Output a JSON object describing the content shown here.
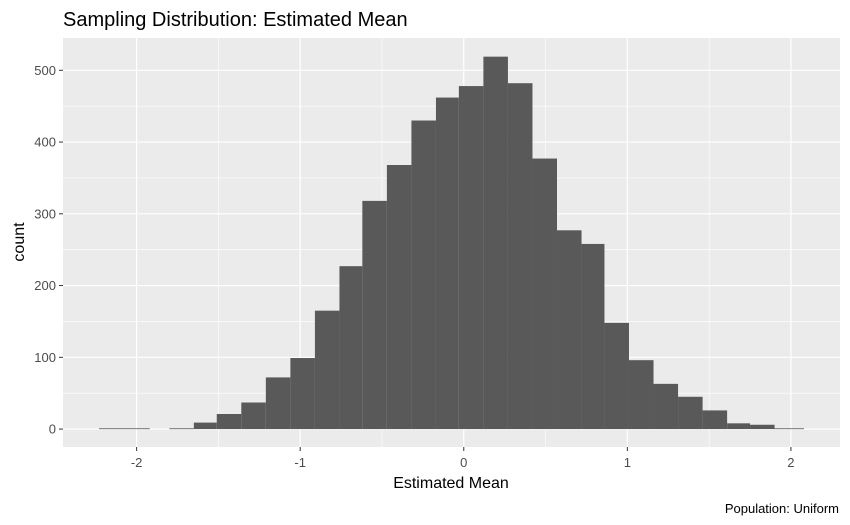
{
  "chart_data": {
    "type": "bar",
    "title": "Sampling Distribution: Estimated Mean",
    "xlabel": "Estimated Mean",
    "ylabel": "count",
    "caption": "Population: Uniform",
    "xlim": [
      -2.45,
      2.3
    ],
    "ylim": [
      -25,
      545
    ],
    "x_ticks": [
      "-2",
      "-1",
      "0",
      "1",
      "2"
    ],
    "y_ticks": [
      "0",
      "100",
      "200",
      "300",
      "400",
      "500"
    ],
    "grid": true,
    "bar_color": "#595959",
    "panel_color": "#ebebeb",
    "bins": [
      {
        "x0": -2.23,
        "x1": -1.92,
        "count": 1
      },
      {
        "x0": -1.8,
        "x1": -1.65,
        "count": 1
      },
      {
        "x0": -1.65,
        "x1": -1.51,
        "count": 9
      },
      {
        "x0": -1.51,
        "x1": -1.36,
        "count": 21
      },
      {
        "x0": -1.36,
        "x1": -1.21,
        "count": 37
      },
      {
        "x0": -1.21,
        "x1": -1.06,
        "count": 72
      },
      {
        "x0": -1.06,
        "x1": -0.91,
        "count": 99
      },
      {
        "x0": -0.91,
        "x1": -0.76,
        "count": 165
      },
      {
        "x0": -0.76,
        "x1": -0.62,
        "count": 227
      },
      {
        "x0": -0.62,
        "x1": -0.47,
        "count": 318
      },
      {
        "x0": -0.47,
        "x1": -0.32,
        "count": 368
      },
      {
        "x0": -0.32,
        "x1": -0.17,
        "count": 430
      },
      {
        "x0": -0.17,
        "x1": -0.03,
        "count": 462
      },
      {
        "x0": -0.03,
        "x1": 0.12,
        "count": 478
      },
      {
        "x0": 0.12,
        "x1": 0.27,
        "count": 519
      },
      {
        "x0": 0.27,
        "x1": 0.42,
        "count": 482
      },
      {
        "x0": 0.42,
        "x1": 0.57,
        "count": 377
      },
      {
        "x0": 0.57,
        "x1": 0.72,
        "count": 277
      },
      {
        "x0": 0.72,
        "x1": 0.86,
        "count": 258
      },
      {
        "x0": 0.86,
        "x1": 1.01,
        "count": 148
      },
      {
        "x0": 1.01,
        "x1": 1.16,
        "count": 96
      },
      {
        "x0": 1.16,
        "x1": 1.31,
        "count": 63
      },
      {
        "x0": 1.31,
        "x1": 1.46,
        "count": 45
      },
      {
        "x0": 1.46,
        "x1": 1.61,
        "count": 26
      },
      {
        "x0": 1.61,
        "x1": 1.75,
        "count": 8
      },
      {
        "x0": 1.75,
        "x1": 1.9,
        "count": 6
      },
      {
        "x0": 1.9,
        "x1": 2.08,
        "count": 1
      }
    ]
  }
}
